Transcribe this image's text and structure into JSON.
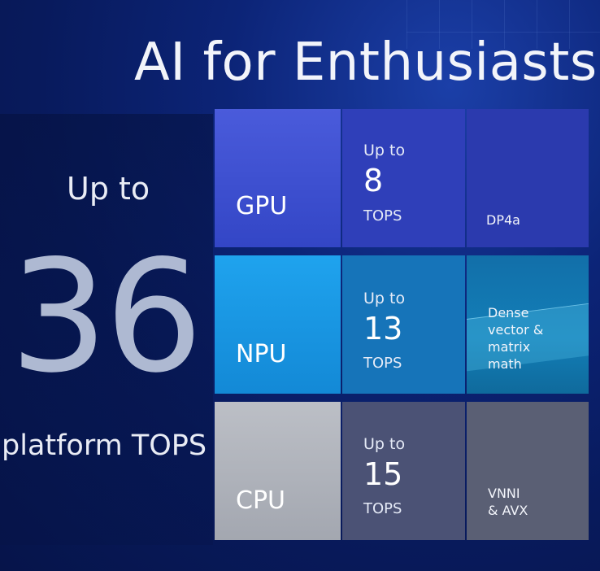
{
  "slide": {
    "title": "AI for Enthusiasts",
    "total": {
      "prefix": "Up to",
      "value": "36",
      "suffix": "platform TOPS"
    }
  },
  "rows": [
    {
      "unit": "GPU",
      "prefix": "Up to",
      "value": "8",
      "suffix": "TOPS",
      "feature": "DP4a"
    },
    {
      "unit": "NPU",
      "prefix": "Up to",
      "value": "13",
      "suffix": "TOPS",
      "feature_lines": [
        "Dense",
        "vector &",
        "matrix",
        "math"
      ]
    },
    {
      "unit": "CPU",
      "prefix": "Up to",
      "value": "15",
      "suffix": "TOPS",
      "feature_lines": [
        "VNNI",
        "& AVX"
      ]
    }
  ],
  "colors": {
    "gpu": "#3a4dd0",
    "npu": "#1a97e6",
    "cpu": "#b0b4bc",
    "background": "#0a1f6b"
  }
}
